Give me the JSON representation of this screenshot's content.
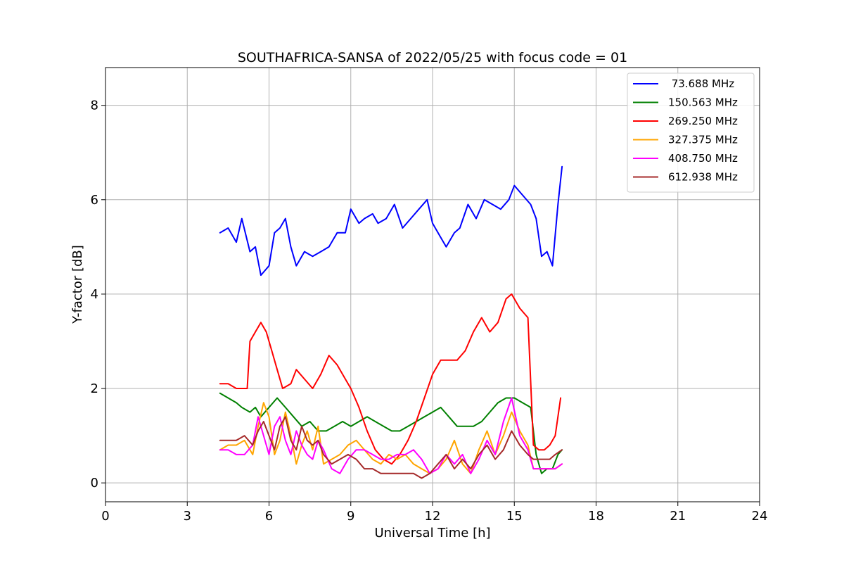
{
  "chart_data": {
    "type": "line",
    "title": "SOUTHAFRICA-SANSA of 2022/05/25 with focus code = 01",
    "xlabel": "Universal Time [h]",
    "ylabel": "Y-factor [dB]",
    "xlim": [
      0,
      24
    ],
    "ylim": [
      -0.4,
      8.8
    ],
    "xticks": [
      0,
      3,
      6,
      9,
      12,
      15,
      18,
      21,
      24
    ],
    "xtick_labels": [
      "0",
      "3",
      "6",
      "9",
      "12",
      "15",
      "18",
      "21",
      "24"
    ],
    "yticks": [
      0,
      2,
      4,
      6,
      8
    ],
    "ytick_labels": [
      "0",
      "2",
      "4",
      "6",
      "8"
    ],
    "grid": true,
    "legend_position": "top-right",
    "series": [
      {
        "name": " 73.688 MHz",
        "color": "#0000ff",
        "x": [
          4.2,
          4.5,
          4.8,
          5.0,
          5.3,
          5.5,
          5.7,
          6.0,
          6.2,
          6.4,
          6.6,
          6.8,
          7.0,
          7.3,
          7.6,
          7.9,
          8.2,
          8.5,
          8.8,
          9.0,
          9.3,
          9.5,
          9.8,
          10.0,
          10.3,
          10.6,
          10.9,
          11.2,
          11.5,
          11.8,
          12.0,
          12.3,
          12.5,
          12.8,
          13.0,
          13.3,
          13.6,
          13.9,
          14.2,
          14.5,
          14.8,
          15.0,
          15.3,
          15.6,
          15.8,
          16.0,
          16.2,
          16.4,
          16.6,
          16.75
        ],
        "y": [
          5.3,
          5.4,
          5.1,
          5.6,
          4.9,
          5.0,
          4.4,
          4.6,
          5.3,
          5.4,
          5.6,
          5.0,
          4.6,
          4.9,
          4.8,
          4.9,
          5.0,
          5.3,
          5.3,
          5.8,
          5.5,
          5.6,
          5.7,
          5.5,
          5.6,
          5.9,
          5.4,
          5.6,
          5.8,
          6.0,
          5.5,
          5.2,
          5.0,
          5.3,
          5.4,
          5.9,
          5.6,
          6.0,
          5.9,
          5.8,
          6.0,
          6.3,
          6.1,
          5.9,
          5.6,
          4.8,
          4.9,
          4.6,
          5.9,
          6.7
        ]
      },
      {
        "name": "150.563 MHz",
        "color": "#008000",
        "x": [
          4.2,
          4.5,
          4.8,
          5.0,
          5.3,
          5.5,
          5.7,
          6.0,
          6.3,
          6.6,
          6.9,
          7.2,
          7.5,
          7.8,
          8.1,
          8.4,
          8.7,
          9.0,
          9.3,
          9.6,
          9.9,
          10.2,
          10.5,
          10.8,
          11.1,
          11.4,
          11.7,
          12.0,
          12.3,
          12.6,
          12.9,
          13.2,
          13.5,
          13.8,
          14.1,
          14.4,
          14.7,
          15.0,
          15.3,
          15.6,
          15.8,
          16.0,
          16.2,
          16.4,
          16.6,
          16.75
        ],
        "y": [
          1.9,
          1.8,
          1.7,
          1.6,
          1.5,
          1.6,
          1.4,
          1.6,
          1.8,
          1.6,
          1.4,
          1.2,
          1.3,
          1.1,
          1.1,
          1.2,
          1.3,
          1.2,
          1.3,
          1.4,
          1.3,
          1.2,
          1.1,
          1.1,
          1.2,
          1.3,
          1.4,
          1.5,
          1.6,
          1.4,
          1.2,
          1.2,
          1.2,
          1.3,
          1.5,
          1.7,
          1.8,
          1.8,
          1.7,
          1.6,
          0.6,
          0.2,
          0.3,
          0.3,
          0.6,
          0.7
        ]
      },
      {
        "name": "269.250 MHz",
        "color": "#ff0000",
        "x": [
          4.2,
          4.5,
          4.8,
          5.0,
          5.2,
          5.3,
          5.5,
          5.7,
          5.9,
          6.1,
          6.3,
          6.5,
          6.8,
          7.0,
          7.3,
          7.6,
          7.9,
          8.2,
          8.5,
          8.8,
          9.0,
          9.3,
          9.6,
          9.9,
          10.2,
          10.5,
          10.8,
          11.1,
          11.4,
          11.7,
          12.0,
          12.3,
          12.6,
          12.9,
          13.2,
          13.5,
          13.8,
          14.1,
          14.4,
          14.7,
          14.9,
          15.2,
          15.5,
          15.7,
          15.9,
          16.1,
          16.3,
          16.5,
          16.7
        ],
        "y": [
          2.1,
          2.1,
          2.0,
          2.0,
          2.0,
          3.0,
          3.2,
          3.4,
          3.2,
          2.8,
          2.4,
          2.0,
          2.1,
          2.4,
          2.2,
          2.0,
          2.3,
          2.7,
          2.5,
          2.2,
          2.0,
          1.6,
          1.1,
          0.7,
          0.5,
          0.4,
          0.6,
          0.9,
          1.3,
          1.8,
          2.3,
          2.6,
          2.6,
          2.6,
          2.8,
          3.2,
          3.5,
          3.2,
          3.4,
          3.9,
          4.0,
          3.7,
          3.5,
          0.8,
          0.7,
          0.7,
          0.8,
          1.0,
          1.8
        ]
      },
      {
        "name": "327.375 MHz",
        "color": "#ffa500",
        "x": [
          4.2,
          4.5,
          4.8,
          5.1,
          5.4,
          5.6,
          5.8,
          6.0,
          6.2,
          6.4,
          6.6,
          6.8,
          7.0,
          7.2,
          7.4,
          7.6,
          7.8,
          8.0,
          8.3,
          8.6,
          8.9,
          9.2,
          9.5,
          9.8,
          10.1,
          10.4,
          10.7,
          11.0,
          11.3,
          11.6,
          11.9,
          12.2,
          12.5,
          12.8,
          13.1,
          13.4,
          13.7,
          14.0,
          14.3,
          14.6,
          14.9,
          15.2,
          15.5,
          15.7,
          15.9,
          16.1,
          16.3,
          16.5,
          16.75
        ],
        "y": [
          0.7,
          0.8,
          0.8,
          0.9,
          0.6,
          1.2,
          1.7,
          1.4,
          0.6,
          0.9,
          1.5,
          1.0,
          0.4,
          0.8,
          1.1,
          0.7,
          1.2,
          0.4,
          0.5,
          0.6,
          0.8,
          0.9,
          0.7,
          0.5,
          0.4,
          0.6,
          0.5,
          0.6,
          0.4,
          0.3,
          0.2,
          0.3,
          0.5,
          0.9,
          0.4,
          0.2,
          0.7,
          1.1,
          0.6,
          1.0,
          1.5,
          1.1,
          0.8,
          0.3,
          0.3,
          0.3,
          0.3,
          0.3,
          0.4
        ]
      },
      {
        "name": "408.750 MHz",
        "color": "#ff00ff",
        "x": [
          4.2,
          4.5,
          4.8,
          5.1,
          5.4,
          5.6,
          5.8,
          6.0,
          6.2,
          6.4,
          6.6,
          6.8,
          7.0,
          7.2,
          7.4,
          7.6,
          7.8,
          8.0,
          8.3,
          8.6,
          8.9,
          9.2,
          9.5,
          9.8,
          10.1,
          10.4,
          10.7,
          11.0,
          11.3,
          11.6,
          11.9,
          12.2,
          12.5,
          12.8,
          13.1,
          13.4,
          13.7,
          14.0,
          14.3,
          14.6,
          14.9,
          15.2,
          15.5,
          15.7,
          15.9,
          16.1,
          16.3,
          16.5,
          16.75
        ],
        "y": [
          0.7,
          0.7,
          0.6,
          0.6,
          0.8,
          1.4,
          1.0,
          0.6,
          1.2,
          1.4,
          0.9,
          0.6,
          1.1,
          0.8,
          0.6,
          0.5,
          0.9,
          0.7,
          0.3,
          0.2,
          0.5,
          0.7,
          0.7,
          0.6,
          0.5,
          0.5,
          0.6,
          0.6,
          0.7,
          0.5,
          0.2,
          0.3,
          0.6,
          0.4,
          0.6,
          0.2,
          0.5,
          0.9,
          0.6,
          1.3,
          1.8,
          1.0,
          0.7,
          0.3,
          0.3,
          0.3,
          0.3,
          0.3,
          0.4
        ]
      },
      {
        "name": "612.938 MHz",
        "color": "#a52a2a",
        "x": [
          4.2,
          4.5,
          4.8,
          5.1,
          5.4,
          5.6,
          5.8,
          6.0,
          6.2,
          6.4,
          6.6,
          6.8,
          7.0,
          7.2,
          7.4,
          7.6,
          7.8,
          8.0,
          8.3,
          8.6,
          8.9,
          9.2,
          9.5,
          9.8,
          10.1,
          10.4,
          10.7,
          11.0,
          11.3,
          11.6,
          11.9,
          12.2,
          12.5,
          12.8,
          13.1,
          13.4,
          13.7,
          14.0,
          14.3,
          14.6,
          14.9,
          15.2,
          15.5,
          15.7,
          15.9,
          16.1,
          16.3,
          16.5,
          16.75
        ],
        "y": [
          0.9,
          0.9,
          0.9,
          1.0,
          0.8,
          1.1,
          1.3,
          1.0,
          0.7,
          1.2,
          1.4,
          0.9,
          0.7,
          1.2,
          0.9,
          0.8,
          0.9,
          0.6,
          0.4,
          0.5,
          0.6,
          0.5,
          0.3,
          0.3,
          0.2,
          0.2,
          0.2,
          0.2,
          0.2,
          0.1,
          0.2,
          0.4,
          0.6,
          0.3,
          0.5,
          0.3,
          0.6,
          0.8,
          0.5,
          0.7,
          1.1,
          0.8,
          0.6,
          0.5,
          0.5,
          0.5,
          0.5,
          0.6,
          0.7
        ]
      }
    ]
  }
}
